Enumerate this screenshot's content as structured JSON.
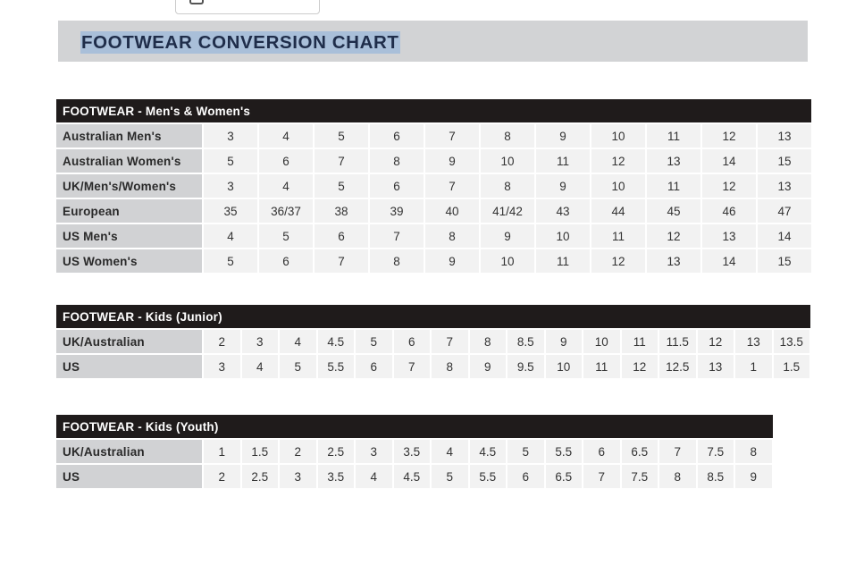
{
  "page": {
    "title": "FOOTWEAR CONVERSION CHART",
    "selection_color": "#a9bfd9"
  },
  "tables": [
    {
      "heading": "FOOTWEAR - Men's & Women's",
      "rows": [
        {
          "label": "Australian Men's",
          "values": [
            "3",
            "4",
            "5",
            "6",
            "7",
            "8",
            "9",
            "10",
            "11",
            "12",
            "13"
          ]
        },
        {
          "label": "Australian Women's",
          "values": [
            "5",
            "6",
            "7",
            "8",
            "9",
            "10",
            "11",
            "12",
            "13",
            "14",
            "15"
          ]
        },
        {
          "label": "UK/Men's/Women's",
          "values": [
            "3",
            "4",
            "5",
            "6",
            "7",
            "8",
            "9",
            "10",
            "11",
            "12",
            "13"
          ]
        },
        {
          "label": "European",
          "values": [
            "35",
            "36/37",
            "38",
            "39",
            "40",
            "41/42",
            "43",
            "44",
            "45",
            "46",
            "47"
          ]
        },
        {
          "label": "US Men's",
          "values": [
            "4",
            "5",
            "6",
            "7",
            "8",
            "9",
            "10",
            "11",
            "12",
            "13",
            "14"
          ]
        },
        {
          "label": "US Women's",
          "values": [
            "5",
            "6",
            "7",
            "8",
            "9",
            "10",
            "11",
            "12",
            "13",
            "14",
            "15"
          ]
        }
      ]
    },
    {
      "heading": "FOOTWEAR - Kids (Junior)",
      "rows": [
        {
          "label": "UK/Australian",
          "values": [
            "2",
            "3",
            "4",
            "4.5",
            "5",
            "6",
            "7",
            "8",
            "8.5",
            "9",
            "10",
            "11",
            "11.5",
            "12",
            "13",
            "13.5"
          ]
        },
        {
          "label": "US",
          "values": [
            "3",
            "4",
            "5",
            "5.5",
            "6",
            "7",
            "8",
            "9",
            "9.5",
            "10",
            "11",
            "12",
            "12.5",
            "13",
            "1",
            "1.5"
          ]
        }
      ]
    },
    {
      "heading": "FOOTWEAR - Kids (Youth)",
      "rows": [
        {
          "label": "UK/Australian",
          "values": [
            "1",
            "1.5",
            "2",
            "2.5",
            "3",
            "3.5",
            "4",
            "4.5",
            "5",
            "5.5",
            "6",
            "6.5",
            "7",
            "7.5",
            "8"
          ]
        },
        {
          "label": "US",
          "values": [
            "2",
            "2.5",
            "3",
            "3.5",
            "4",
            "4.5",
            "5",
            "5.5",
            "6",
            "6.5",
            "7",
            "7.5",
            "8",
            "8.5",
            "9"
          ]
        }
      ]
    }
  ]
}
